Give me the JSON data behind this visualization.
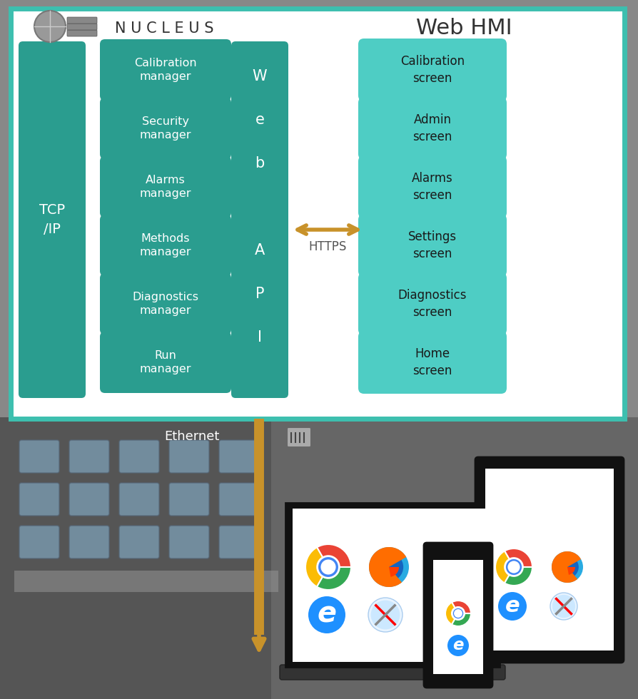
{
  "fig_width": 8.94,
  "fig_height": 9.8,
  "dpi": 100,
  "bg_color": "#888888",
  "diagram_bg": "#ffffff",
  "border_color": "#3dbfaf",
  "teal_dark": "#2a9d8f",
  "teal_light": "#4ecdc4",
  "nucleus_title": "N U C L E U S",
  "webhmi_title": "Web HMI",
  "tcp_label": "TCP\n/IP",
  "https_label": "HTTPS",
  "ethernet_label": "Ethernet",
  "left_managers": [
    "Run\nmanager",
    "Diagnostics\nmanager",
    "Methods\nmanager",
    "Alarms\nmanager",
    "Security\nmanager",
    "Calibration\nmanager"
  ],
  "right_screens": [
    "Home\nscreen",
    "Diagnostics\nscreen",
    "Settings\nscreen",
    "Alarms\nscreen",
    "Admin\nscreen",
    "Calibration\nscreen"
  ],
  "arrow_color": "#c8922a",
  "web_api_lines": [
    "W",
    "e",
    "b",
    "",
    "A",
    "P",
    "I"
  ]
}
